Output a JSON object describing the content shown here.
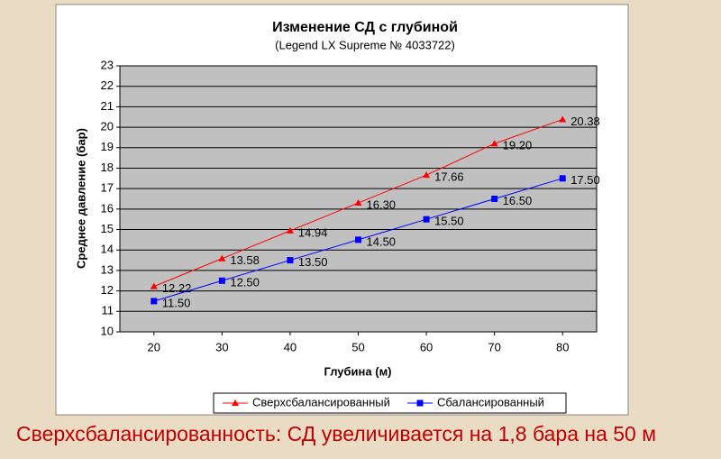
{
  "chart_data": {
    "type": "line",
    "title": "Изменение СД с глубиной",
    "subtitle": "(Legend LX Supreme № 4033722)",
    "x_label": "Глубина (м)",
    "y_label": "Среднее давление (бар)",
    "x": [
      20,
      30,
      40,
      50,
      60,
      70,
      80
    ],
    "xlim": [
      15,
      85
    ],
    "xticks": [
      20,
      30,
      40,
      50,
      60,
      70,
      80
    ],
    "ylim": [
      10,
      23
    ],
    "yticks": [
      10,
      11,
      12,
      13,
      14,
      15,
      16,
      17,
      18,
      19,
      20,
      21,
      22,
      23
    ],
    "grid": true,
    "legend": "bottom",
    "series": [
      {
        "name": "Сверхсбалансированный",
        "color": "#ff0000",
        "marker": "triangle",
        "values": [
          12.22,
          13.58,
          14.94,
          16.3,
          17.66,
          19.2,
          20.38
        ],
        "value_labels": [
          "12.22",
          "13.58",
          "14.94",
          "16.30",
          "17.66",
          "19.20",
          "20.38"
        ]
      },
      {
        "name": "Сбалансированный",
        "color": "#0000ff",
        "marker": "square",
        "values": [
          11.5,
          12.5,
          13.5,
          14.5,
          15.5,
          16.5,
          17.5
        ],
        "value_labels": [
          "11.50",
          "12.50",
          "13.50",
          "14.50",
          "15.50",
          "16.50",
          "17.50"
        ]
      }
    ]
  },
  "slide": {
    "caption": "Сверхсбалансированность: СД увеличивается на 1,8 бара на 50 м"
  }
}
